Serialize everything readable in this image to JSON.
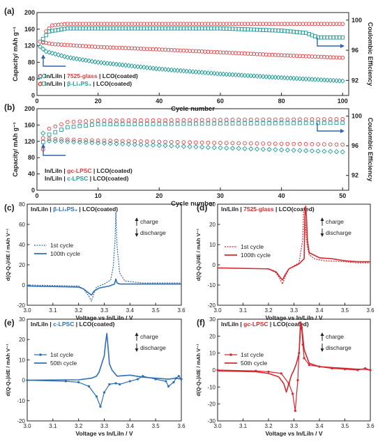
{
  "colors": {
    "red": "#e03a3e",
    "teal": "#1f9c95",
    "blue": "#2d6fb6",
    "pblue": "#2f63b3",
    "pred": "#d6282e",
    "gray": "#888888"
  },
  "chart_data": [
    {
      "panel": "(a)",
      "type": "scatter",
      "xlabel": "Cycle number",
      "ylabel": "Capacity/ mAh g⁻¹",
      "y2label": "Coulombic Efficiency",
      "xlim": [
        0,
        102
      ],
      "ylim": [
        0,
        200
      ],
      "y2lim": [
        90,
        101
      ],
      "xticks": [
        0,
        20,
        40,
        60,
        80,
        100
      ],
      "yticks": [
        0,
        40,
        80,
        120,
        160,
        200
      ],
      "y2ticks": [
        92,
        96,
        100
      ],
      "legend": [
        {
          "parts": [
            [
              "In/LiIn | ",
              "#222222"
            ],
            [
              "7525-glass",
              "#e03a3e"
            ],
            [
              " | LCO(coated)",
              "#222222"
            ]
          ]
        },
        {
          "parts": [
            [
              "In/LiIn | ",
              "#222222"
            ],
            [
              "β-Li₃PS₄",
              "#1f9c95"
            ],
            [
              " | LCO(coated)",
              "#222222"
            ]
          ]
        }
      ],
      "series": [
        {
          "name": "7525-glass",
          "axis": "capacity",
          "marker": "circle",
          "color": "#e03a3e",
          "start": 1,
          "end": 100,
          "values_key": [
            [
              1,
              130
            ],
            [
              5,
              124
            ],
            [
              20,
              117
            ],
            [
              40,
              111
            ],
            [
              60,
              104
            ],
            [
              80,
              97
            ],
            [
              100,
              91
            ]
          ]
        },
        {
          "name": "β-Li₃PS₄",
          "axis": "capacity",
          "marker": "diamond",
          "color": "#1f9c95",
          "start": 1,
          "end": 100,
          "values_key": [
            [
              1,
              118
            ],
            [
              3,
              106
            ],
            [
              10,
              92
            ],
            [
              20,
              80
            ],
            [
              40,
              64
            ],
            [
              60,
              52
            ],
            [
              80,
              43
            ],
            [
              100,
              35
            ]
          ]
        },
        {
          "name": "7525-glass",
          "axis": "efficiency",
          "marker": "circle",
          "color": "#e03a3e",
          "start": 1,
          "end": 100,
          "values_key": [
            [
              1,
              91.5
            ],
            [
              2,
              97.0
            ],
            [
              3,
              98.5
            ],
            [
              5,
              99.3
            ],
            [
              10,
              99.5
            ],
            [
              100,
              99.5
            ]
          ]
        },
        {
          "name": "β-Li₃PS₄",
          "axis": "efficiency",
          "marker": "square",
          "color": "#1f9c95",
          "start": 1,
          "end": 100,
          "values_key": [
            [
              1,
              92.5
            ],
            [
              2,
              97.5
            ],
            [
              4,
              98.5
            ],
            [
              10,
              98.9
            ],
            [
              60,
              98.9
            ],
            [
              80,
              98.6
            ],
            [
              88,
              98.3
            ],
            [
              92,
              97.7
            ],
            [
              100,
              97.7
            ]
          ]
        }
      ]
    },
    {
      "panel": "(b)",
      "type": "scatter",
      "xlabel": "Cycle number",
      "ylabel": "Capacity/ mAh g⁻¹",
      "y2label": "Coulombic Efficiency",
      "xlim": [
        0,
        51
      ],
      "ylim": [
        0,
        200
      ],
      "y2lim": [
        90,
        101
      ],
      "xticks": [
        0,
        10,
        20,
        30,
        40,
        50
      ],
      "yticks": [
        0,
        40,
        80,
        120,
        160,
        200
      ],
      "y2ticks": [
        92,
        96,
        100
      ],
      "legend": [
        {
          "parts": [
            [
              "In/LiIn | ",
              "#222222"
            ],
            [
              "gc-LPSC",
              "#e03a3e"
            ],
            [
              " | LCO(coated)",
              "#222222"
            ]
          ]
        },
        {
          "parts": [
            [
              "In/LiIn | ",
              "#222222"
            ],
            [
              "c-LPSC",
              "#1f9c95"
            ],
            [
              " | LCO(coated)",
              "#222222"
            ]
          ]
        }
      ],
      "series": [
        {
          "name": "gc-LPSC",
          "axis": "capacity",
          "marker": "circle",
          "color": "#e03a3e",
          "start": 1,
          "end": 50,
          "values_key": [
            [
              1,
              128
            ],
            [
              2,
              126
            ],
            [
              10,
              122
            ],
            [
              30,
              116
            ],
            [
              50,
              112
            ]
          ]
        },
        {
          "name": "c-LPSC",
          "axis": "capacity",
          "marker": "diamond",
          "color": "#1f9c95",
          "start": 1,
          "end": 50,
          "values_key": [
            [
              1,
              140
            ],
            [
              2,
              121
            ],
            [
              10,
              116
            ],
            [
              30,
              104
            ],
            [
              50,
              94
            ]
          ]
        },
        {
          "name": "gc-LPSC",
          "axis": "efficiency",
          "marker": "circle",
          "color": "#e03a3e",
          "start": 1,
          "end": 50,
          "values_key": [
            [
              1,
              95.5
            ],
            [
              2,
              98.3
            ],
            [
              5,
              99.2
            ],
            [
              10,
              99.4
            ],
            [
              50,
              99.6
            ]
          ]
        },
        {
          "name": "c-LPSC",
          "axis": "efficiency",
          "marker": "square",
          "color": "#1f9c95",
          "start": 1,
          "end": 50,
          "values_key": [
            [
              1,
              96.5
            ],
            [
              2,
              97.5
            ],
            [
              5,
              98.5
            ],
            [
              10,
              98.9
            ],
            [
              50,
              99.1
            ]
          ]
        }
      ]
    },
    {
      "panel": "(c)",
      "type": "line",
      "title_parts": [
        [
          "In/LiIn | ",
          "#222222"
        ],
        [
          "β-Li₃PS₄",
          "#2d6fb6"
        ],
        [
          " | LCO(coated)",
          "#222222"
        ]
      ],
      "xlabel": "Voltage vs In/LiIn / V",
      "ylabel": "d(Q-Q₀)/dE / mAh V⁻¹",
      "xlim": [
        3.0,
        3.6
      ],
      "ylim": [
        -20,
        80
      ],
      "xticks": [
        3.0,
        3.1,
        3.2,
        3.3,
        3.4,
        3.5,
        3.6
      ],
      "yticks": [
        -20,
        0,
        20,
        40,
        60,
        80
      ],
      "annotations": [
        "charge",
        "discharge"
      ],
      "legend": [
        "1st cycle",
        "100th cycle"
      ],
      "series": [
        {
          "name": "1st cycle",
          "style": "dotted",
          "color": "#2d6fb6",
          "x": [
            3.0,
            3.2,
            3.22,
            3.24,
            3.25,
            3.26,
            3.27,
            3.3,
            3.325,
            3.335,
            3.342,
            3.345,
            3.35,
            3.36,
            3.38,
            3.45,
            3.5,
            3.6
          ],
          "y": [
            0,
            -1,
            -4,
            -11,
            -16,
            -8,
            -2,
            1,
            5,
            18,
            45,
            72,
            38,
            12,
            4,
            2,
            2,
            2
          ]
        },
        {
          "name": "100th cycle",
          "style": "solid",
          "color": "#2d6fb6",
          "x": [
            3.0,
            3.2,
            3.22,
            3.24,
            3.25,
            3.26,
            3.28,
            3.32,
            3.34,
            3.345,
            3.35,
            3.36,
            3.4,
            3.45,
            3.6
          ],
          "y": [
            -1,
            -2,
            -4,
            -8,
            -10,
            -6,
            -3,
            -1,
            1,
            6,
            2,
            1,
            1,
            1,
            1
          ]
        }
      ]
    },
    {
      "panel": "(d)",
      "type": "line",
      "title_parts": [
        [
          "In/LiIn | ",
          "#222222"
        ],
        [
          "7525-glass",
          "#d6282e"
        ],
        [
          " | LCO(coated)",
          "#222222"
        ]
      ],
      "xlabel": "Voltage vs In/LiIn / V",
      "ylabel": "d(Q-Q₀)/dE / mAh V⁻¹",
      "xlim": [
        3.0,
        3.6
      ],
      "ylim": [
        -20,
        30
      ],
      "xticks": [
        3.0,
        3.1,
        3.2,
        3.3,
        3.4,
        3.5,
        3.6
      ],
      "yticks": [
        -20,
        -10,
        0,
        10,
        20,
        30
      ],
      "annotations": [
        "charge",
        "discharge"
      ],
      "legend": [
        "1st cycle",
        "100th cycle"
      ],
      "series": [
        {
          "name": "1st cycle",
          "style": "dotted",
          "color": "#d6282e",
          "x": [
            3.2,
            3.23,
            3.245,
            3.255,
            3.265,
            3.28,
            3.32,
            3.334,
            3.338,
            3.342,
            3.347,
            3.352,
            3.36,
            3.38,
            3.42,
            3.5,
            3.55,
            3.6
          ],
          "y": [
            -2,
            -4,
            -7,
            -9.5,
            -6,
            -2,
            1,
            12,
            26,
            27,
            16,
            9,
            5,
            3,
            2,
            1.5,
            1,
            1
          ]
        },
        {
          "name": "100th cycle",
          "style": "solid",
          "color": "#d6282e",
          "x": [
            3.0,
            3.2,
            3.23,
            3.245,
            3.255,
            3.265,
            3.28,
            3.32,
            3.34,
            3.343,
            3.346,
            3.349,
            3.353,
            3.36,
            3.4,
            3.45,
            3.5,
            3.55,
            3.6
          ],
          "y": [
            -1.5,
            -2,
            -3.5,
            -6,
            -7.5,
            -5,
            -2,
            0.5,
            3,
            24,
            29,
            24,
            12,
            6,
            3.5,
            3,
            2,
            1.5,
            1.5
          ]
        }
      ]
    },
    {
      "panel": "(e)",
      "type": "line",
      "title_parts": [
        [
          "In/LiIn | ",
          "#222222"
        ],
        [
          "c-LPSC",
          "#2d6fb6"
        ],
        [
          " | LCO(coated)",
          "#222222"
        ]
      ],
      "xlabel": "Voltage vs In/LiIn / V",
      "ylabel": "d(Q-Q₀)/dE / mAh V⁻¹",
      "xlim": [
        3.0,
        3.6
      ],
      "ylim": [
        -20,
        30
      ],
      "xticks": [
        3.0,
        3.1,
        3.2,
        3.3,
        3.4,
        3.5,
        3.6
      ],
      "yticks": [
        -20,
        -10,
        0,
        10,
        20,
        30
      ],
      "annotations": [
        "charge",
        "discharge"
      ],
      "legend": [
        "1st cycle",
        "50th cycle"
      ],
      "series": [
        {
          "name": "1st cycle",
          "style": "solid-dots",
          "color": "#2d6fb6",
          "x": [
            3.0,
            3.15,
            3.2,
            3.24,
            3.27,
            3.285,
            3.3,
            3.32,
            3.345,
            3.36,
            3.4,
            3.43,
            3.45,
            3.5,
            3.54,
            3.55,
            3.57,
            3.58,
            3.59,
            3.6
          ],
          "y": [
            0,
            -0.5,
            -1,
            -3,
            -8,
            -13,
            -6,
            -2,
            -1.5,
            -2,
            -0.5,
            0.5,
            2,
            0.5,
            -0.5,
            -3,
            -1,
            1,
            2,
            0.5
          ]
        },
        {
          "name": "50th cycle",
          "style": "solid",
          "color": "#2d6fb6",
          "x": [
            3.0,
            3.2,
            3.25,
            3.27,
            3.28,
            3.29,
            3.3,
            3.305,
            3.31,
            3.315,
            3.32,
            3.33,
            3.35,
            3.4,
            3.45,
            3.5,
            3.55,
            3.58,
            3.6
          ],
          "y": [
            0,
            0.2,
            1,
            2,
            4,
            8,
            12,
            18,
            23,
            16,
            8,
            5,
            2,
            2.5,
            1.5,
            1,
            0.5,
            1,
            0.5
          ]
        }
      ]
    },
    {
      "panel": "(f)",
      "type": "line",
      "title_parts": [
        [
          "In/LiIn | ",
          "#222222"
        ],
        [
          "gc-LPSC",
          "#d6282e"
        ],
        [
          " | LCO(coated)",
          "#222222"
        ]
      ],
      "xlabel": "Voltage vs In/LiIn / V",
      "ylabel": "d(Q-Q₀)/dE / mAh V⁻¹",
      "xlim": [
        3.0,
        3.6
      ],
      "ylim": [
        -30,
        30
      ],
      "xticks": [
        3.0,
        3.1,
        3.2,
        3.3,
        3.4,
        3.5,
        3.6
      ],
      "yticks": [
        -30,
        -20,
        -10,
        0,
        10,
        20,
        30
      ],
      "annotations": [
        "charge",
        "discharge"
      ],
      "legend": [
        "1st cycle",
        "50th cycle"
      ],
      "series": [
        {
          "name": "1st cycle",
          "style": "solid-dots",
          "color": "#d6282e",
          "x": [
            3.0,
            3.15,
            3.2,
            3.25,
            3.28,
            3.295,
            3.305,
            3.315,
            3.32,
            3.325,
            3.33,
            3.335,
            3.34,
            3.36,
            3.4,
            3.45,
            3.5,
            3.55,
            3.58,
            3.6
          ],
          "y": [
            0,
            -0.5,
            -1,
            -2,
            -8,
            -14,
            -24,
            -6,
            10,
            28,
            25,
            15,
            7,
            3,
            2,
            1,
            0.5,
            0,
            1,
            0
          ]
        },
        {
          "name": "50th cycle",
          "style": "solid",
          "color": "#d6282e",
          "x": [
            3.0,
            3.15,
            3.2,
            3.24,
            3.26,
            3.27,
            3.28,
            3.29,
            3.3,
            3.31,
            3.32,
            3.325,
            3.33,
            3.34,
            3.36,
            3.4,
            3.45,
            3.5,
            3.55,
            3.58,
            3.6
          ],
          "y": [
            -0.5,
            -1,
            -2,
            -4,
            -8,
            -13,
            -8,
            -3,
            0,
            4,
            10,
            23,
            27,
            12,
            4,
            2,
            1.5,
            1,
            0.5,
            0.5,
            0
          ]
        }
      ]
    }
  ]
}
